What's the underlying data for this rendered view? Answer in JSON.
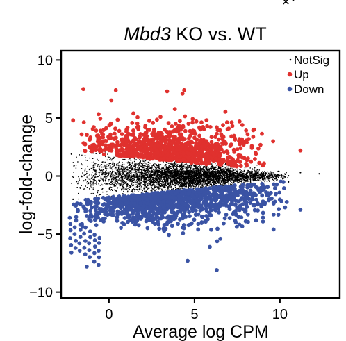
{
  "chart_data": {
    "type": "scatter",
    "title": {
      "italic": "Mbd3",
      "rest": " KO vs. WT"
    },
    "corner_text": "+ir",
    "xlabel": "Average log CPM",
    "ylabel": "log-fold-change",
    "xlim": [
      -2.8,
      13.5
    ],
    "ylim": [
      -10.5,
      10.8
    ],
    "xticks": [
      "0",
      "5",
      "10"
    ],
    "yticks": [
      "10",
      "5",
      "0",
      "-5",
      "-10"
    ],
    "legend": {
      "placement": "top-right",
      "entries": [
        "NotSig",
        "Up",
        "Down"
      ]
    },
    "series": [
      {
        "name": "NotSig",
        "color": "#000000",
        "description": "dense cloud of non-significant genes around log-fold-change 0, spread widest at low CPM",
        "x_range": [
          -2.3,
          12.3
        ],
        "y_band": [
          -2.2,
          2.2
        ],
        "points": [
          [
            -2.2,
            1.9
          ],
          [
            -2.1,
            -2.0
          ],
          [
            9.9,
            0.4
          ],
          [
            11.2,
            0.3
          ],
          [
            12.3,
            0.2
          ],
          [
            10.5,
            -0.5
          ]
        ]
      },
      {
        "name": "Up",
        "color": "#e0312e",
        "description": "significantly up-regulated genes, log-fold-change about 1.5 to 7.5",
        "x_range": [
          -2.1,
          11.3
        ],
        "y_range": [
          1.5,
          7.6
        ],
        "points": [
          [
            -1.5,
            7.5
          ],
          [
            0.4,
            7.4
          ],
          [
            3.4,
            7.3
          ],
          [
            4.4,
            7.4
          ],
          [
            4.3,
            7.1
          ],
          [
            -2.1,
            4.8
          ],
          [
            7.8,
            4.4
          ],
          [
            9.6,
            3.0
          ],
          [
            11.2,
            2.2
          ]
        ]
      },
      {
        "name": "Down",
        "color": "#3a53a4",
        "description": "significantly down-regulated genes, log-fold-change about -1.5 to -8",
        "x_range": [
          -2.3,
          11.3
        ],
        "y_range": [
          -8.2,
          -1.5
        ],
        "points": [
          [
            -2.2,
            -6.6
          ],
          [
            -1.3,
            -7.8
          ],
          [
            4.6,
            -7.3
          ],
          [
            6.3,
            -8.1
          ],
          [
            10.3,
            -2.7
          ],
          [
            11.2,
            -2.9
          ],
          [
            8.0,
            -3.9
          ],
          [
            5.9,
            -6.1
          ]
        ]
      }
    ]
  }
}
